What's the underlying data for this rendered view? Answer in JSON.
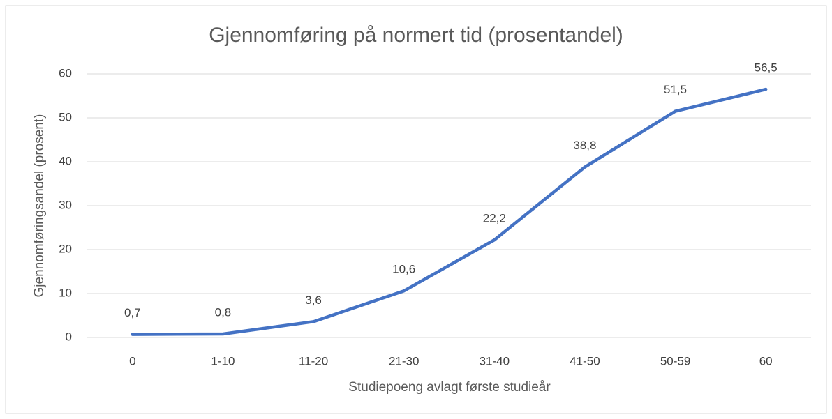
{
  "chart_data": {
    "type": "line",
    "title": "Gjennomføring på normert tid (prosentandel)",
    "x_label": "Studiepoeng avlagt første studieår",
    "y_label": "Gjennomføringsandel (prosent)",
    "categories": [
      "0",
      "1-10",
      "11-20",
      "21-30",
      "31-40",
      "41-50",
      "50-59",
      "60"
    ],
    "values": [
      0.7,
      0.8,
      3.6,
      10.6,
      22.2,
      38.8,
      51.5,
      56.5
    ],
    "value_labels": [
      "0,7",
      "0,8",
      "3,6",
      "10,6",
      "22,2",
      "38,8",
      "51,5",
      "56,5"
    ],
    "color": "#4472c4",
    "ylim": [
      0,
      60
    ],
    "yticks": [
      0,
      10,
      20,
      30,
      40,
      50,
      60
    ],
    "grid": true
  }
}
